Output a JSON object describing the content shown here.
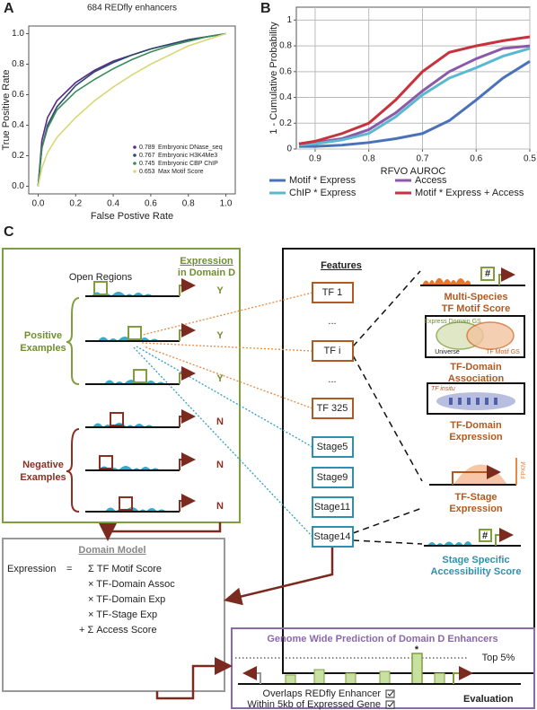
{
  "chart_data": [
    {
      "type": "line",
      "label": "A",
      "title": "684 REDfly enhancers",
      "xlabel": "False Postive Rate",
      "ylabel": "True Positive Rate",
      "x": [
        0,
        0.02,
        0.05,
        0.1,
        0.2,
        0.3,
        0.4,
        0.5,
        0.6,
        0.7,
        0.8,
        0.9,
        1.0
      ],
      "series": [
        {
          "name": "Embryonic DNase_seq",
          "auc": "0.789",
          "color": "#5a2a88",
          "values": [
            0,
            0.3,
            0.45,
            0.56,
            0.68,
            0.76,
            0.82,
            0.86,
            0.9,
            0.93,
            0.96,
            0.98,
            1
          ]
        },
        {
          "name": "Embryonic H3K4Me3",
          "auc": "0.767",
          "color": "#2c4a6e",
          "values": [
            0,
            0.25,
            0.4,
            0.52,
            0.66,
            0.75,
            0.81,
            0.86,
            0.9,
            0.93,
            0.96,
            0.98,
            1
          ]
        },
        {
          "name": "Embryonic CBP ChIP",
          "auc": "0.745",
          "color": "#3a8a5a",
          "values": [
            0,
            0.25,
            0.38,
            0.5,
            0.62,
            0.7,
            0.77,
            0.83,
            0.88,
            0.92,
            0.95,
            0.98,
            1
          ]
        },
        {
          "name": "Max Motif Score",
          "auc": "0.653",
          "color": "#d8d878",
          "values": [
            0,
            0.12,
            0.22,
            0.32,
            0.45,
            0.56,
            0.65,
            0.73,
            0.8,
            0.86,
            0.92,
            0.96,
            1
          ]
        }
      ],
      "xlim": [
        -0.05,
        1.05
      ],
      "xticks": [
        {
          "value": 0,
          "label": "0.0"
        },
        0.2,
        0.4,
        0.6,
        0.8,
        {
          "value": 1,
          "label": "1.0"
        }
      ],
      "ylim": [
        -0.05,
        1.05
      ],
      "yticks": [
        {
          "value": 0,
          "label": "0.0"
        },
        0.2,
        0.4,
        0.6,
        0.8,
        {
          "value": 1,
          "label": "1.0"
        }
      ],
      "grid": false,
      "legend": "lower right"
    },
    {
      "type": "line",
      "label": "B",
      "xlabel": "RFVO AUROC",
      "ylabel": "1 - Cumulative Probability",
      "x": [
        0.93,
        0.9,
        0.85,
        0.8,
        0.75,
        0.7,
        0.65,
        0.6,
        0.55,
        0.5
      ],
      "series": [
        {
          "name": "Motif * Express",
          "color": "#4a72b8",
          "values": [
            0.02,
            0.02,
            0.03,
            0.05,
            0.08,
            0.12,
            0.22,
            0.38,
            0.55,
            0.68
          ]
        },
        {
          "name": "Access",
          "color": "#8a5aa8",
          "values": [
            0.04,
            0.05,
            0.08,
            0.15,
            0.28,
            0.45,
            0.6,
            0.7,
            0.78,
            0.8
          ]
        },
        {
          "name": "ChIP * Express",
          "color": "#5ab8d0",
          "values": [
            0.03,
            0.04,
            0.07,
            0.12,
            0.25,
            0.42,
            0.55,
            0.63,
            0.72,
            0.78
          ]
        },
        {
          "name": "Motif * Express + Access",
          "color": "#c8323c",
          "values": [
            0.04,
            0.06,
            0.12,
            0.2,
            0.38,
            0.6,
            0.75,
            0.8,
            0.84,
            0.87
          ]
        }
      ],
      "xlim": [
        0.935,
        0.5
      ],
      "xticks": [
        0.9,
        0.8,
        0.7,
        0.6,
        0.5
      ],
      "ylim": [
        0,
        1.1
      ],
      "yticks": [
        0,
        0.2,
        0.4,
        0.6,
        0.8,
        1
      ],
      "grid": true,
      "legend": "below"
    }
  ],
  "diagram": {
    "panel_label": "C",
    "training": {
      "header": [
        "Expression",
        "in Domain D"
      ],
      "open_regions": "Open Regions",
      "positive": [
        "Positive",
        "Examples"
      ],
      "negative": [
        "Negative",
        "Examples"
      ],
      "labels": [
        "Y",
        "Y",
        "Y",
        "N",
        "N",
        "N"
      ]
    },
    "features": {
      "title": "Features",
      "items": [
        "TF 1",
        "...",
        "TF i",
        "...",
        "TF 325",
        "Stage5",
        "Stage9",
        "Stage11",
        "Stage14"
      ]
    },
    "insets": {
      "hash": "#",
      "venn": [
        "Express Domain GS",
        "Universe",
        "TF Motif GS"
      ],
      "insitu": "TF insitu",
      "fpkm": "FPKM",
      "labels": [
        [
          "Multi-Species",
          "TF Motif Score"
        ],
        [
          "TF-Domain",
          "Association"
        ],
        [
          "TF-Domain",
          "Expression"
        ],
        [
          "TF-Stage",
          "Expression"
        ],
        [
          "Stage Specific",
          "Accessibility  Score"
        ]
      ]
    },
    "domain_model": {
      "title": "Domain Model",
      "lhs": "Expression",
      "eq": "=",
      "terms": [
        "Σ TF Motif Score",
        "× TF-Domain Assoc",
        "× TF-Domain Exp",
        "× TF-Stage Exp",
        "+ Σ Access Score"
      ]
    },
    "prediction": {
      "title": "Genome Wide Prediction of Domain D Enhancers",
      "top": "Top 5%",
      "star": "*",
      "checks": [
        "Overlaps REDfly Enhancer",
        "Within 5kb of Expressed Gene"
      ],
      "evaluation": "Evaluation"
    }
  }
}
